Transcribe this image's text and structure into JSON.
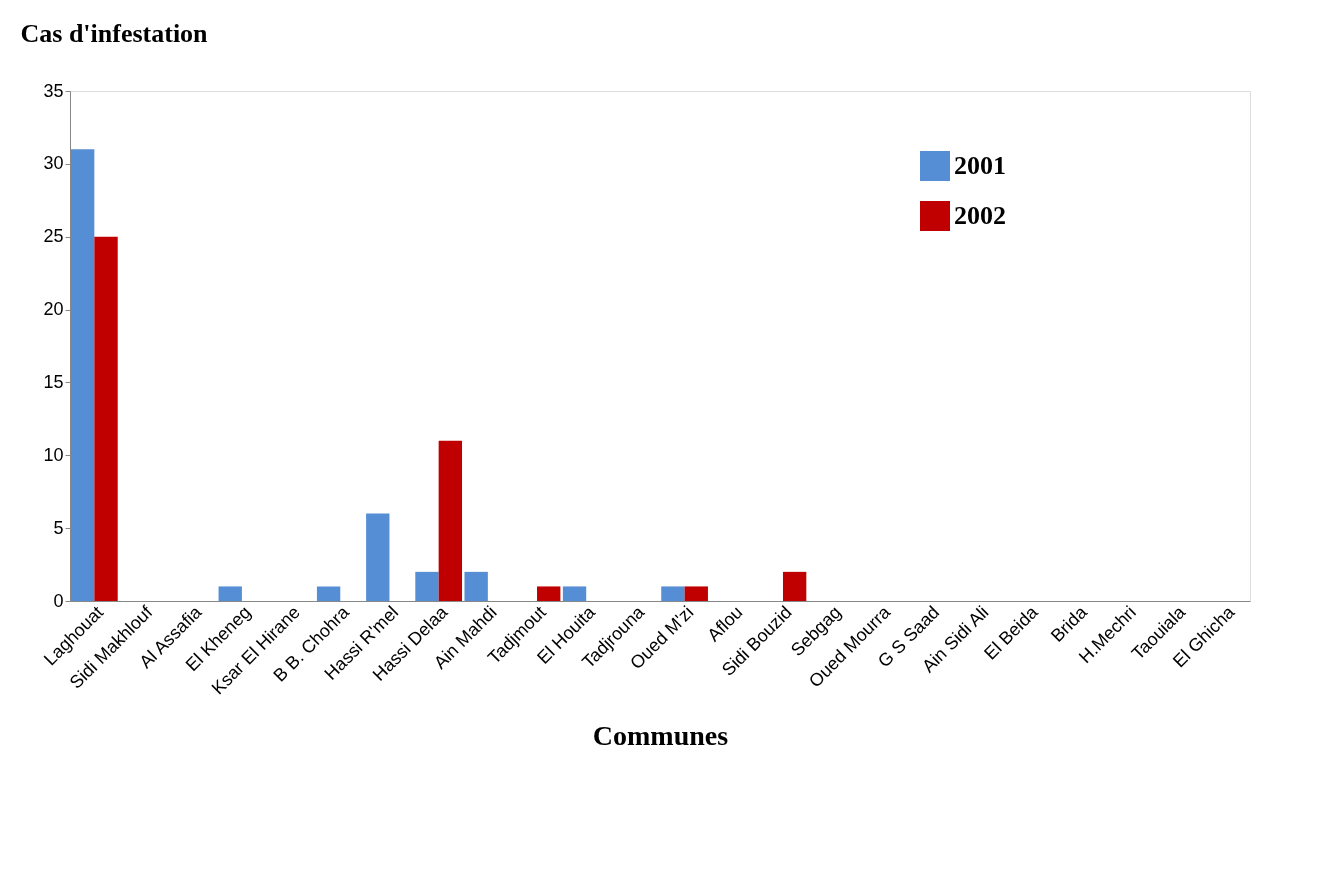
{
  "chart_data": {
    "type": "bar",
    "ylabel": "Cas d'infestation",
    "xlabel": "Communes",
    "categories": [
      "Laghouat",
      "Sidi Makhlouf",
      "Al Assafia",
      "El Kheneg",
      "Ksar El Hirane",
      "B B. Chohra",
      "Hassi R'mel",
      "Hassi Delaa",
      "Ain Mahdi",
      "Tadjmout",
      "El Houita",
      "Tadjrouna",
      "Oued M'zi",
      "Aflou",
      "Sidi Bouzid",
      "Sebgag",
      "Oued Mourra",
      "G S Saad",
      "Ain Sidi Ali",
      "El Beida",
      "Brida",
      "H.Mechri",
      "Taouiala",
      "El Ghicha"
    ],
    "series": [
      {
        "name": "2001",
        "color": "#558ed5",
        "values": [
          31,
          0,
          0,
          1,
          0,
          1,
          6,
          2,
          2,
          0,
          1,
          0,
          1,
          0,
          0,
          0,
          0,
          0,
          0,
          0,
          0,
          0,
          0,
          0
        ]
      },
      {
        "name": "2002",
        "color": "#c00000",
        "values": [
          25,
          0,
          0,
          0,
          0,
          0,
          0,
          11,
          0,
          1,
          0,
          0,
          1,
          0,
          2,
          0,
          0,
          0,
          0,
          0,
          0,
          0,
          0,
          0
        ]
      }
    ],
    "ylim": [
      0,
      35
    ],
    "yticks": [
      0,
      5,
      10,
      15,
      20,
      25,
      30,
      35
    ],
    "grid": false,
    "legend": "top right"
  }
}
